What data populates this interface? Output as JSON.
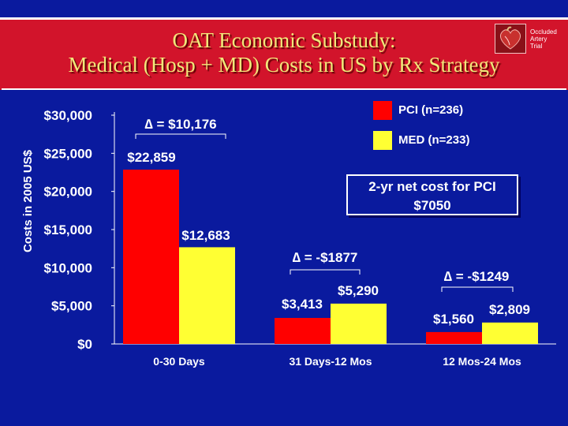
{
  "slide": {
    "title_line1": "OAT Economic Substudy:",
    "title_line2": "Medical (Hosp + MD) Costs in US by Rx Strategy",
    "logo_lines": [
      "Occluded",
      "Artery",
      "Trial"
    ],
    "logo_icon": "heart-icon"
  },
  "colors": {
    "background": "#0a1a9e",
    "banner": "#d2142b",
    "pci": "#ff0000",
    "med": "#ffff33",
    "text": "#ffffff"
  },
  "annotation": {
    "line1": "2-yr net cost for PCI",
    "line2": "$7050"
  },
  "chart_data": {
    "type": "bar",
    "title": "OAT Economic Substudy: Medical (Hosp + MD) Costs in US by Rx Strategy",
    "xlabel": "",
    "ylabel": "Costs in 2005 US$",
    "ylim": [
      0,
      30000
    ],
    "yticks": [
      0,
      5000,
      10000,
      15000,
      20000,
      25000,
      30000
    ],
    "ytick_labels": [
      "$0",
      "$5,000",
      "$10,000",
      "$15,000",
      "$20,000",
      "$25,000",
      "$30,000"
    ],
    "categories": [
      "0-30 Days",
      "31 Days-12 Mos",
      "12 Mos-24 Mos"
    ],
    "series": [
      {
        "name": "PCI  (n=236)",
        "color": "#ff0000",
        "values": [
          22859,
          3413,
          1560
        ],
        "labels": [
          "$22,859",
          "$3,413",
          "$1,560"
        ]
      },
      {
        "name": "MED (n=233)",
        "color": "#ffff33",
        "values": [
          12683,
          5290,
          2809
        ],
        "labels": [
          "$12,683",
          "$5,290",
          "$2,809"
        ]
      }
    ],
    "deltas": [
      "∆ = $10,176",
      "∆ = -$1877",
      "∆ = -$1249"
    ],
    "legend_position": "top-right",
    "grid": false
  }
}
